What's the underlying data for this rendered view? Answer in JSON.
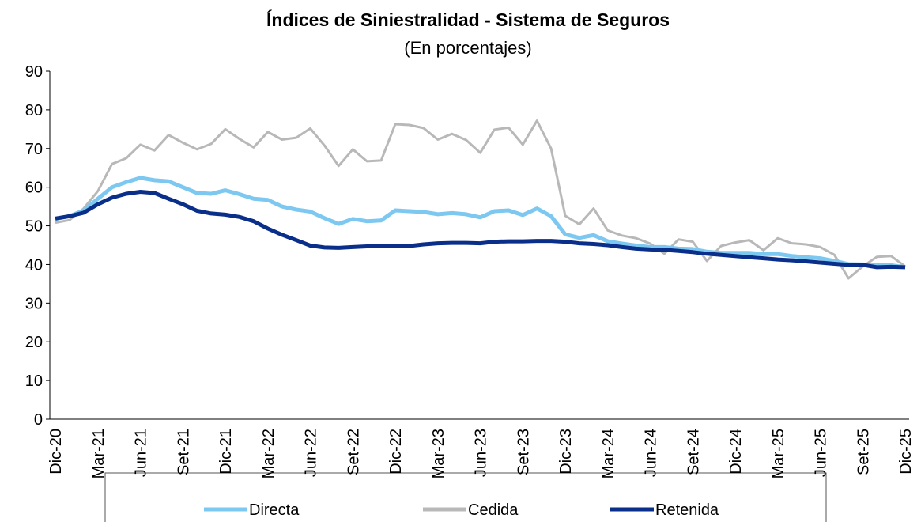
{
  "chart_data": {
    "type": "line",
    "title": "Índices de Siniestralidad - Sistema de Seguros",
    "subtitle": "(En porcentajes)",
    "categories": [
      "Dic-20",
      null,
      null,
      "Mar-21",
      null,
      null,
      "Jun-21",
      null,
      null,
      "Set-21",
      null,
      null,
      "Dic-21",
      null,
      null,
      "Mar-22",
      null,
      null,
      "Jun-22",
      null,
      null,
      "Set-22",
      null,
      null,
      "Dic-22",
      null,
      null,
      "Mar-23",
      null,
      null,
      "Jun-23",
      null,
      null,
      "Set-23",
      null,
      null,
      "Dic-23",
      null,
      null,
      "Mar-24",
      null,
      null,
      "Jun-24",
      null,
      null,
      "Set-24",
      null,
      null,
      "Dic-24",
      null,
      null,
      "Mar-25",
      null,
      null,
      "Jun-25",
      null,
      null,
      "Set-25",
      null,
      null,
      "Dic-25"
    ],
    "series": [
      {
        "name": "Directa",
        "color": "#7dc8f0",
        "values": [
          51.8,
          52.5,
          54,
          57,
          60,
          61.3,
          62.4,
          61.8,
          61.5,
          60,
          58.5,
          58.3,
          59.2,
          58.2,
          57,
          56.7,
          55,
          54.2,
          53.7,
          52,
          50.5,
          51.8,
          51.2,
          51.4,
          54,
          53.8,
          53.6,
          53,
          53.3,
          53,
          52.2,
          53.8,
          54,
          52.8,
          54.5,
          52.5,
          47.8,
          46.9,
          47.6,
          46,
          45.4,
          44.9,
          44.5,
          44.5,
          44.1,
          44,
          43.3,
          43,
          43,
          43,
          42.7,
          42.7,
          42.2,
          41.9,
          41.6,
          40.9,
          40.1,
          40,
          39.8,
          39.8,
          39.3
        ]
      },
      {
        "name": "Cedida",
        "color": "#b8b8b8",
        "values": [
          50.8,
          51.5,
          54.5,
          59,
          66,
          67.5,
          71,
          69.5,
          73.5,
          71.5,
          69.8,
          71.2,
          75,
          72.5,
          70.3,
          74.3,
          72.3,
          72.8,
          75.2,
          70.8,
          65.5,
          69.8,
          66.7,
          66.9,
          76.3,
          76.1,
          75.3,
          72.3,
          73.8,
          72.2,
          68.9,
          74.9,
          75.4,
          71,
          77.2,
          70,
          52.6,
          50.4,
          54.5,
          48.8,
          47.5,
          46.8,
          45.4,
          42.8,
          46.5,
          45.9,
          40.9,
          44.8,
          45.7,
          46.3,
          43.7,
          46.8,
          45.5,
          45.2,
          44.5,
          42.5,
          36.4,
          39.5,
          42,
          42.2,
          39.5
        ]
      },
      {
        "name": "Retenida",
        "color": "#0a2f8a",
        "values": [
          51.9,
          52.5,
          53.4,
          55.6,
          57.3,
          58.3,
          58.8,
          58.5,
          57,
          55.6,
          53.9,
          53.2,
          52.9,
          52.3,
          51.2,
          49.3,
          47.7,
          46.3,
          44.9,
          44.4,
          44.3,
          44.5,
          44.7,
          44.9,
          44.8,
          44.8,
          45.2,
          45.5,
          45.6,
          45.6,
          45.5,
          45.9,
          46,
          46,
          46.1,
          46.1,
          45.9,
          45.5,
          45.3,
          45,
          44.5,
          44.1,
          43.9,
          43.8,
          43.5,
          43.2,
          42.8,
          42.5,
          42.2,
          41.9,
          41.6,
          41.3,
          41.1,
          40.8,
          40.5,
          40.2,
          39.9,
          39.9,
          39.3,
          39.4,
          39.3
        ]
      }
    ],
    "ylim": [
      0,
      90
    ],
    "yticks": [
      0,
      10,
      20,
      30,
      40,
      50,
      60,
      70,
      80,
      90
    ],
    "grid": false,
    "legend": "bottom"
  }
}
